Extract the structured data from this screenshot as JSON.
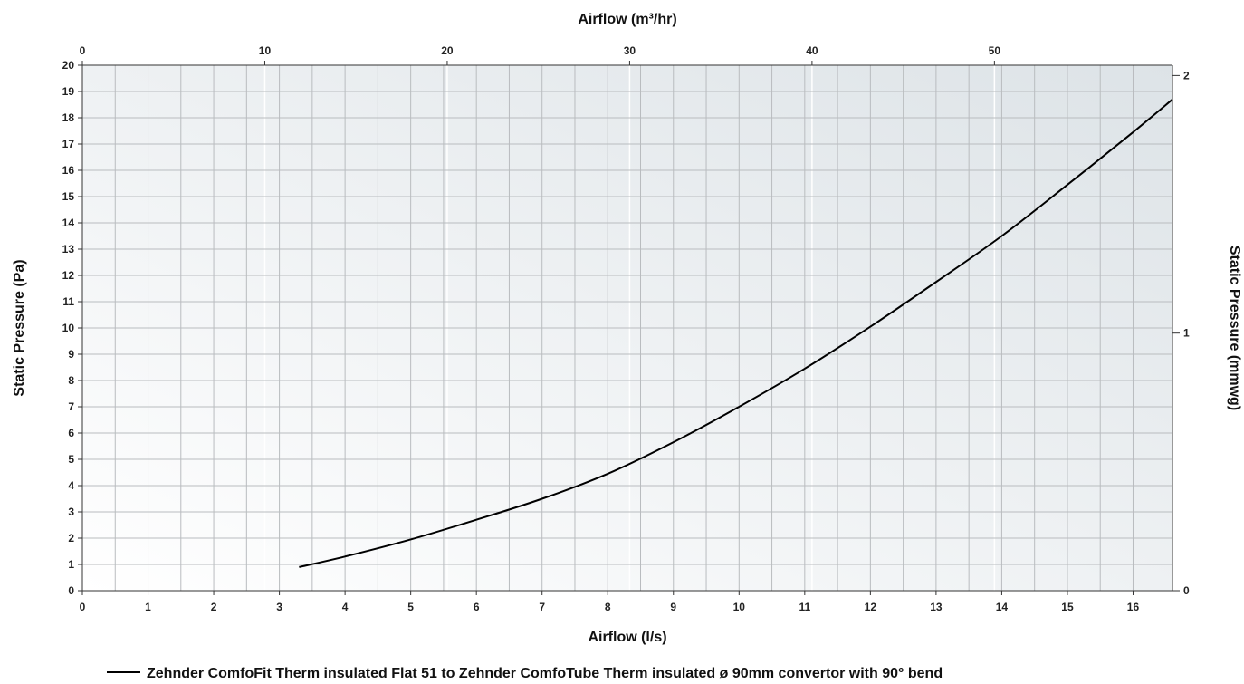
{
  "chart_data": {
    "type": "line",
    "xlabel": "Airflow (l/s)",
    "x2label": "Airflow (m³/hr)",
    "ylabel": "Static Pressure (Pa)",
    "y2label": "Static Pressure (mmwg)",
    "xlim": [
      0,
      16.6
    ],
    "ylim": [
      0,
      20
    ],
    "x2lim": [
      0,
      59.76
    ],
    "y2lim": [
      0,
      2.04
    ],
    "x_ticks": [
      0,
      1,
      2,
      3,
      4,
      5,
      6,
      7,
      8,
      9,
      10,
      11,
      12,
      13,
      14,
      15,
      16
    ],
    "y_ticks": [
      0,
      1,
      2,
      3,
      4,
      5,
      6,
      7,
      8,
      9,
      10,
      11,
      12,
      13,
      14,
      15,
      16,
      17,
      18,
      19,
      20
    ],
    "x2_ticks": [
      0,
      10,
      20,
      30,
      40,
      50
    ],
    "y2_ticks": [
      0,
      1,
      2
    ],
    "x_gridlines": [
      0,
      0.5,
      1,
      1.5,
      2,
      2.5,
      3,
      3.5,
      4,
      4.5,
      5,
      5.5,
      6,
      6.5,
      7,
      7.5,
      8,
      8.5,
      9,
      9.5,
      10,
      10.5,
      11,
      11.5,
      12,
      12.5,
      13,
      13.5,
      14,
      14.5,
      15,
      15.5,
      16
    ],
    "grid": true,
    "legend_position": "bottom-center",
    "series": [
      {
        "name": "Zehnder ComfoFit Therm insulated Flat 51 to Zehnder ComfoTube Therm insulated ø 90mm convertor with 90° bend",
        "color": "#000000",
        "x": [
          3.3,
          4,
          5,
          6,
          7,
          8,
          9,
          10,
          11,
          12,
          13,
          14,
          15,
          16,
          16.6
        ],
        "y": [
          0.9,
          1.3,
          1.95,
          2.7,
          3.5,
          4.45,
          5.65,
          7.0,
          8.45,
          10.05,
          11.75,
          13.5,
          15.45,
          17.45,
          18.7
        ]
      }
    ]
  }
}
